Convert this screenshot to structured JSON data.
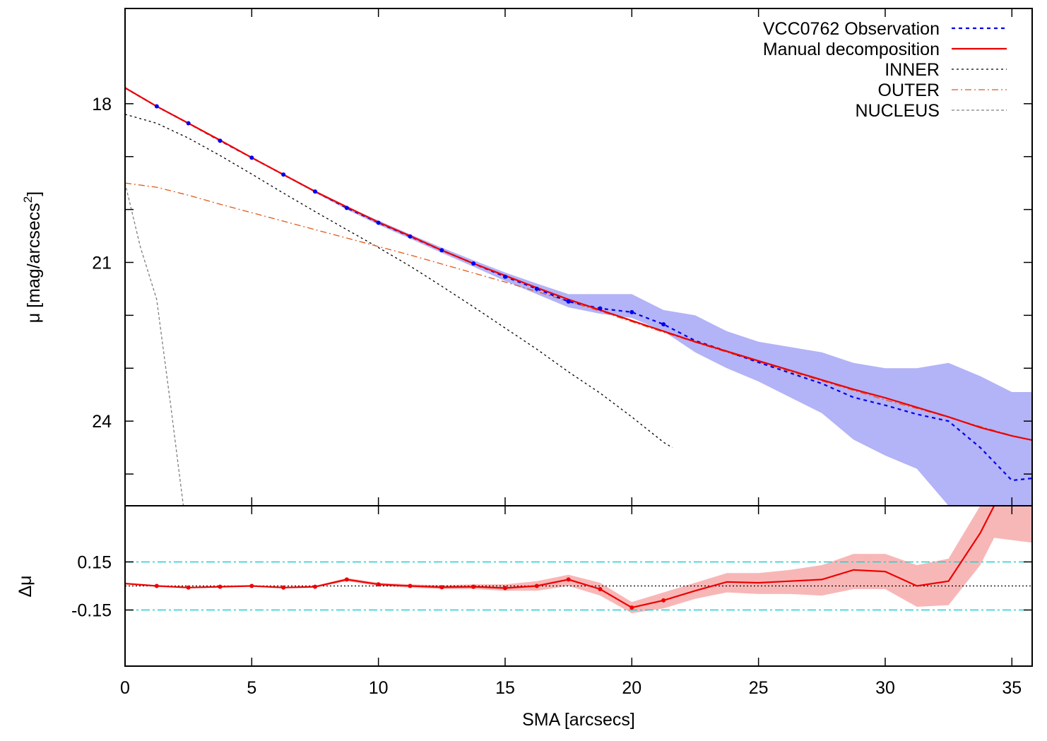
{
  "chart_data": [
    {
      "panel": "profile",
      "type": "line",
      "xlabel": "SMA [arcsecs]",
      "ylabel": "μ [mag/arcsecs",
      "ylabel_sup": "2",
      "ylabel_close": "]",
      "xlim": [
        0,
        35.8
      ],
      "ylim": [
        16.2,
        25.6
      ],
      "y_inverted": true,
      "y_ticks": [
        18,
        21,
        24
      ],
      "y_minor_ticks": [
        19,
        20,
        22,
        23,
        25
      ],
      "grid": false,
      "legend_position": "top-right",
      "series": [
        {
          "name": "VCC0762 Observation",
          "style": "dotted-with-points",
          "color": "#0000ee",
          "x": [
            0,
            1.25,
            2.5,
            3.75,
            5,
            6.25,
            7.5,
            8.75,
            10,
            11.25,
            12.5,
            13.75,
            15,
            16.25,
            17.5,
            18.75,
            20,
            21.25,
            22.5,
            23.75,
            25,
            26.25,
            27.5,
            28.75,
            30,
            31.25,
            32.5,
            33.75,
            35,
            35.8
          ],
          "y": [
            17.7,
            18.05,
            18.37,
            18.7,
            19.02,
            19.34,
            19.66,
            19.97,
            20.25,
            20.51,
            20.77,
            21.02,
            21.27,
            21.5,
            21.74,
            21.87,
            21.94,
            22.17,
            22.48,
            22.68,
            22.89,
            23.09,
            23.29,
            23.55,
            23.7,
            23.87,
            24.0,
            24.5,
            25.12,
            25.08
          ],
          "markers_x": [
            1.25,
            2.5,
            3.75,
            5,
            6.25,
            7.5,
            8.75,
            10,
            11.25,
            12.5,
            13.75,
            15,
            16.25,
            17.5,
            18.75,
            20,
            21.25
          ],
          "band_x": [
            0,
            1.25,
            2.5,
            3.75,
            5,
            6.25,
            7.5,
            8.75,
            10,
            11.25,
            12.5,
            13.75,
            15,
            16.25,
            17.5,
            18.75,
            20,
            21.25,
            22.5,
            23.75,
            25,
            26.25,
            27.5,
            28.75,
            30,
            31.25,
            32.5,
            33.75,
            35,
            35.8
          ],
          "band_lower": [
            17.7,
            18.04,
            18.36,
            18.69,
            19.01,
            19.33,
            19.64,
            19.94,
            20.21,
            20.47,
            20.72,
            20.96,
            21.19,
            21.4,
            21.6,
            21.6,
            21.6,
            21.9,
            22.0,
            22.3,
            22.5,
            22.6,
            22.7,
            22.9,
            23.0,
            23.0,
            22.9,
            23.15,
            23.45,
            23.45
          ],
          "band_upper": [
            17.7,
            18.06,
            18.38,
            18.71,
            19.03,
            19.35,
            19.68,
            20.0,
            20.29,
            20.55,
            20.82,
            21.08,
            21.35,
            21.6,
            21.85,
            21.97,
            22.05,
            22.3,
            22.7,
            23.0,
            23.25,
            23.55,
            23.85,
            24.35,
            24.65,
            24.9,
            25.6,
            25.6,
            25.6,
            25.6
          ],
          "band_color": "#b3b3f7"
        },
        {
          "name": "Manual decomposition",
          "style": "solid",
          "color": "#ee0000",
          "x": [
            0,
            1.25,
            2.5,
            3.75,
            5,
            6.25,
            7.5,
            8.75,
            10,
            11.25,
            12.5,
            13.75,
            15,
            16.25,
            17.5,
            18.75,
            20,
            21.25,
            22.5,
            23.75,
            25,
            26.25,
            27.5,
            28.75,
            30,
            31.25,
            32.5,
            33.75,
            35,
            35.8
          ],
          "y": [
            17.7,
            18.05,
            18.37,
            18.69,
            19.02,
            19.34,
            19.66,
            19.95,
            20.24,
            20.5,
            20.77,
            21.02,
            21.25,
            21.48,
            21.7,
            21.9,
            22.1,
            22.3,
            22.5,
            22.68,
            22.86,
            23.04,
            23.22,
            23.4,
            23.56,
            23.74,
            23.92,
            24.12,
            24.28,
            24.36
          ]
        },
        {
          "name": "INNER",
          "style": "dashed-fine",
          "color": "#000000",
          "x": [
            0,
            1.25,
            2.5,
            3.75,
            5,
            6.25,
            7.5,
            8.75,
            10,
            11.25,
            12.5,
            13.75,
            15,
            16.25,
            17.5,
            18.75,
            20,
            21.25,
            21.6
          ],
          "y": [
            18.2,
            18.37,
            18.65,
            18.98,
            19.33,
            19.69,
            20.04,
            20.38,
            20.72,
            21.07,
            21.45,
            21.84,
            22.24,
            22.64,
            23.07,
            23.47,
            23.92,
            24.4,
            24.5
          ]
        },
        {
          "name": "OUTER",
          "style": "dash-dot",
          "color": "#e05a1a",
          "x": [
            0,
            1.25,
            2.5,
            3.75,
            5,
            6.25,
            7.5,
            8.75,
            10,
            11.25,
            12.5,
            13.75,
            15,
            16.25,
            17.5,
            18.75,
            20,
            21.25,
            22.5,
            23.75,
            25,
            26.25,
            27.5,
            28.75,
            30,
            31.25,
            32.5,
            33.75,
            35,
            35.8
          ],
          "y": [
            19.5,
            19.58,
            19.73,
            19.9,
            20.06,
            20.22,
            20.38,
            20.54,
            20.7,
            20.86,
            21.03,
            21.2,
            21.37,
            21.55,
            21.74,
            21.92,
            22.12,
            22.32,
            22.51,
            22.7,
            22.88,
            23.06,
            23.24,
            23.42,
            23.6,
            23.76,
            23.93,
            24.1,
            24.27,
            24.36
          ]
        },
        {
          "name": "NUCLEUS",
          "style": "dashed",
          "color": "#808080",
          "x": [
            0,
            0.6,
            1.25,
            1.8,
            2.3
          ],
          "y": [
            19.5,
            20.7,
            21.7,
            23.7,
            25.6
          ]
        }
      ]
    },
    {
      "panel": "residuals",
      "type": "line",
      "xlabel": "SMA [arcsecs]",
      "ylabel": "Δμ",
      "xlim": [
        0,
        35.8
      ],
      "x_ticks": [
        0,
        5,
        10,
        15,
        20,
        25,
        30,
        35
      ],
      "ylim": [
        -0.5,
        0.5
      ],
      "y_ticks": [
        0.15,
        -0.15
      ],
      "y_tick_labels": [
        "0.15",
        "-0.15"
      ],
      "reference_lines": [
        {
          "y": 0.15,
          "color": "#20d0d0",
          "style": "dash-dot"
        },
        {
          "y": -0.15,
          "color": "#20d0d0",
          "style": "dash-dot"
        },
        {
          "y": 0,
          "color": "#000000",
          "style": "dotted"
        }
      ],
      "series": [
        {
          "name": "",
          "style": "solid-with-points",
          "color": "#ee0000",
          "x": [
            0,
            1.25,
            2.5,
            3.75,
            5,
            6.25,
            7.5,
            8.75,
            10,
            11.25,
            12.5,
            13.75,
            15,
            16.25,
            17.5,
            18.75,
            20,
            21.25,
            22.5,
            23.75,
            25,
            26.25,
            27.5,
            28.75,
            30,
            31.25,
            32.5,
            33.75,
            34.3
          ],
          "y": [
            0.015,
            0.0,
            -0.01,
            -0.005,
            0.0,
            -0.01,
            -0.005,
            0.04,
            0.01,
            0.0,
            -0.008,
            -0.005,
            -0.013,
            0.0,
            0.04,
            -0.02,
            -0.135,
            -0.09,
            -0.03,
            0.025,
            0.02,
            0.03,
            0.04,
            0.1,
            0.09,
            0.0,
            0.03,
            0.33,
            0.5
          ],
          "markers_x": [
            1.25,
            2.5,
            3.75,
            5,
            6.25,
            7.5,
            8.75,
            10,
            11.25,
            12.5,
            13.75,
            15,
            16.25,
            17.5,
            18.75,
            20,
            21.25
          ],
          "band_x": [
            0,
            1.25,
            2.5,
            3.75,
            5,
            6.25,
            7.5,
            8.75,
            10,
            11.25,
            12.5,
            13.75,
            15,
            16.25,
            17.5,
            18.75,
            20,
            21.25,
            22.5,
            23.75,
            25,
            26.25,
            27.5,
            28.75,
            30,
            31.25,
            32.5,
            33.75,
            34.3,
            35.8
          ],
          "band_lower": [
            0.015,
            -0.002,
            -0.012,
            -0.008,
            -0.004,
            -0.014,
            -0.01,
            0.03,
            0.0,
            -0.01,
            -0.02,
            -0.02,
            -0.03,
            -0.03,
            0.0,
            -0.06,
            -0.17,
            -0.14,
            -0.08,
            -0.04,
            -0.05,
            -0.05,
            -0.06,
            -0.02,
            -0.02,
            -0.13,
            -0.12,
            0.13,
            0.3,
            0.27
          ],
          "band_upper": [
            0.015,
            0.002,
            -0.008,
            -0.002,
            0.004,
            -0.006,
            0.0,
            0.05,
            0.02,
            0.01,
            0.005,
            0.01,
            0.01,
            0.03,
            0.07,
            0.02,
            -0.1,
            -0.04,
            0.02,
            0.08,
            0.08,
            0.1,
            0.13,
            0.2,
            0.2,
            0.13,
            0.17,
            0.5,
            0.5,
            0.5
          ],
          "band_color": "#f8b7b7"
        }
      ]
    }
  ]
}
